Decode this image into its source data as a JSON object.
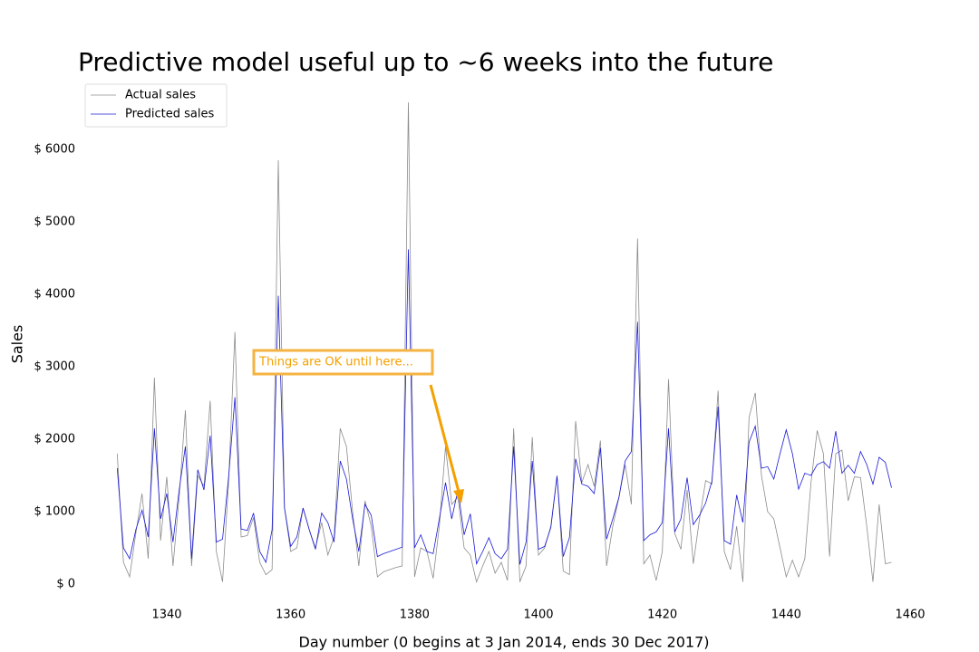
{
  "chart_data": {
    "type": "line",
    "title": "Predictive model useful up to ~6 weeks into the future",
    "xlabel": "Day number (0 begins at 3 Jan 2014, ends 30 Dec 2017)",
    "ylabel": "Sales",
    "annotations": [
      "Things are OK until here..."
    ],
    "x": [
      1332,
      1333,
      1334,
      1335,
      1336,
      1337,
      1338,
      1339,
      1340,
      1341,
      1342,
      1343,
      1344,
      1345,
      1346,
      1347,
      1348,
      1349,
      1350,
      1351,
      1352,
      1353,
      1354,
      1355,
      1356,
      1357,
      1358,
      1359,
      1360,
      1361,
      1362,
      1363,
      1364,
      1365,
      1366,
      1367,
      1368,
      1369,
      1370,
      1371,
      1372,
      1373,
      1374,
      1375,
      1376,
      1377,
      1378,
      1379,
      1380,
      1381,
      1382,
      1383,
      1384,
      1385,
      1386,
      1387,
      1388,
      1389,
      1390,
      1391,
      1392,
      1393,
      1394,
      1395,
      1396,
      1397,
      1398,
      1399,
      1400,
      1401,
      1402,
      1403,
      1404,
      1405,
      1406,
      1407,
      1408,
      1409,
      1410,
      1411,
      1412,
      1413,
      1414,
      1415,
      1416,
      1417,
      1418,
      1419,
      1420,
      1421,
      1422,
      1423,
      1424,
      1425,
      1426,
      1427,
      1428,
      1429,
      1430,
      1431,
      1432,
      1433,
      1434,
      1435,
      1436,
      1437,
      1438,
      1439,
      1440,
      1441,
      1442,
      1443,
      1444,
      1445,
      1446,
      1447,
      1448,
      1449,
      1450,
      1451,
      1452,
      1453,
      1454,
      1455,
      1456,
      1457
    ],
    "series": [
      {
        "name": "Actual sales",
        "color": "#8c8c8c",
        "values": [
          1800,
          300,
          100,
          700,
          1250,
          350,
          2850,
          600,
          1480,
          250,
          1200,
          2400,
          250,
          1500,
          1350,
          2530,
          450,
          30,
          1450,
          3480,
          650,
          670,
          920,
          300,
          130,
          200,
          5850,
          1050,
          450,
          500,
          1050,
          750,
          500,
          850,
          400,
          650,
          2150,
          1900,
          1000,
          250,
          1150,
          800,
          100,
          170,
          200,
          230,
          250,
          6650,
          100,
          500,
          450,
          80,
          800,
          1900,
          1100,
          1200,
          500,
          400,
          30,
          250,
          450,
          150,
          300,
          50,
          2150,
          30,
          250,
          2030,
          400,
          500,
          800,
          1500,
          180,
          130,
          2250,
          1400,
          1650,
          1350,
          1980,
          250,
          800,
          1200,
          1650,
          1100,
          4770,
          280,
          400,
          50,
          450,
          2830,
          700,
          480,
          1300,
          280,
          900,
          1430,
          1380,
          2670,
          450,
          200,
          800,
          30,
          2300,
          2640,
          1500,
          1000,
          900,
          500,
          100,
          330,
          100,
          350,
          1400,
          2120,
          1800,
          380,
          1800,
          1850,
          1150,
          1480,
          1470,
          800,
          30,
          1100,
          280,
          300
        ]
      },
      {
        "name": "Predicted sales",
        "color": "#1a1ad6",
        "values": [
          1600,
          500,
          350,
          750,
          1020,
          650,
          2150,
          900,
          1250,
          580,
          1300,
          1900,
          350,
          1580,
          1300,
          2050,
          580,
          620,
          1500,
          2580,
          760,
          740,
          980,
          450,
          300,
          750,
          3980,
          1050,
          520,
          650,
          1050,
          750,
          480,
          980,
          850,
          580,
          1700,
          1450,
          900,
          450,
          1100,
          950,
          380,
          420,
          450,
          480,
          510,
          4620,
          500,
          680,
          450,
          420,
          900,
          1400,
          900,
          1300,
          680,
          970,
          280,
          450,
          640,
          420,
          350,
          480,
          1900,
          270,
          580,
          1700,
          480,
          520,
          780,
          1490,
          380,
          640,
          1730,
          1380,
          1350,
          1250,
          1880,
          620,
          900,
          1200,
          1700,
          1830,
          3620,
          600,
          680,
          720,
          850,
          2150,
          720,
          900,
          1470,
          820,
          950,
          1120,
          1420,
          2450,
          600,
          550,
          1230,
          850,
          1960,
          2180,
          1600,
          1620,
          1450,
          1800,
          2130,
          1800,
          1310,
          1530,
          1500,
          1650,
          1690,
          1600,
          2110,
          1530,
          1640,
          1530,
          1830,
          1650,
          1380,
          1750,
          1680,
          1330
        ]
      }
    ],
    "xlim": [
      1327,
      1462
    ],
    "xticks": [
      1340,
      1360,
      1380,
      1400,
      1420,
      1440,
      1460
    ],
    "ylim": [
      -150,
      6900
    ],
    "yticks": [
      {
        "value": 0,
        "label": "$ 0"
      },
      {
        "value": 1000,
        "label": "$ 1000"
      },
      {
        "value": 2000,
        "label": "$ 2000"
      },
      {
        "value": 3000,
        "label": "$ 3000"
      },
      {
        "value": 4000,
        "label": "$ 4000"
      },
      {
        "value": 5000,
        "label": "$ 5000"
      },
      {
        "value": 6000,
        "label": "$ 6000"
      }
    ],
    "grid": false,
    "legend": "upper left"
  }
}
